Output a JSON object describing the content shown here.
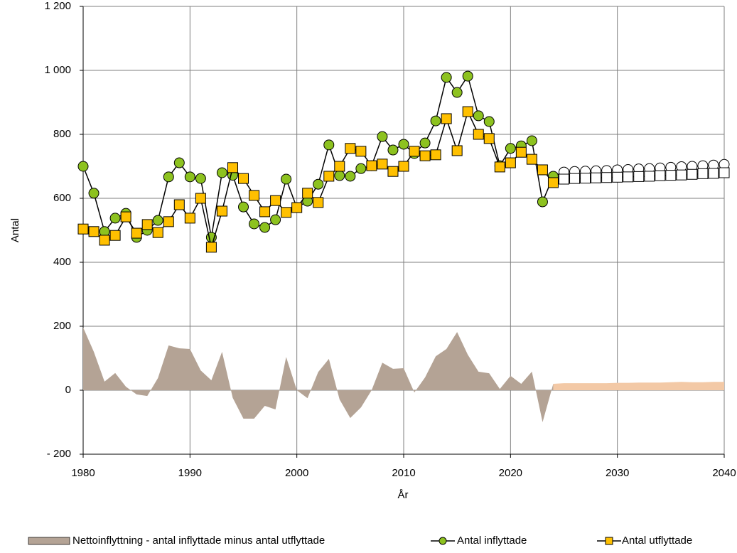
{
  "chart_data": {
    "type": "line",
    "xlabel": "År",
    "ylabel": "Antal",
    "xlim": [
      1980,
      2040
    ],
    "xticks": [
      1980,
      1990,
      2000,
      2010,
      2020,
      2030,
      2040
    ],
    "ylim": [
      -200,
      1200
    ],
    "yticks": [
      {
        "value": -200,
        "label": "- 200"
      },
      0,
      200,
      400,
      600,
      800,
      {
        "value": 1000,
        "label": "1 000"
      },
      {
        "value": 1200,
        "label": "1 200"
      }
    ],
    "grid": true,
    "legend": "bottom",
    "x": [
      1980,
      1981,
      1982,
      1983,
      1984,
      1985,
      1986,
      1987,
      1988,
      1989,
      1990,
      1991,
      1992,
      1993,
      1994,
      1995,
      1996,
      1997,
      1998,
      1999,
      2000,
      2001,
      2002,
      2003,
      2004,
      2005,
      2006,
      2007,
      2008,
      2009,
      2010,
      2011,
      2012,
      2013,
      2014,
      2015,
      2016,
      2017,
      2018,
      2019,
      2020,
      2021,
      2022,
      2023,
      2024,
      2025,
      2026,
      2027,
      2028,
      2029,
      2030,
      2031,
      2032,
      2033,
      2034,
      2035,
      2036,
      2037,
      2038,
      2039,
      2040
    ],
    "series": [
      {
        "name": "Nettoinflyttning - antal inflyttade minus antal utflyttade",
        "style": "area",
        "values": [
          196,
          120,
          27,
          54,
          11,
          -13,
          -18,
          38,
          140,
          131,
          129,
          62,
          31,
          120,
          -24,
          -89,
          -89,
          -49,
          -60,
          104,
          0,
          -25,
          57,
          98,
          -29,
          -87,
          -54,
          0,
          86,
          67,
          69,
          -7,
          40,
          106,
          129,
          182,
          111,
          58,
          53,
          4,
          45,
          20,
          58,
          -100,
          20,
          22,
          22,
          22,
          22,
          22,
          23,
          23,
          24,
          24,
          24,
          25,
          26,
          25,
          25,
          26,
          26
        ],
        "colors": [
          "#b4a395",
          "#b4a395",
          "#b4a395",
          "#b4a395",
          "#b4a395",
          "#b4a395",
          "#b4a395",
          "#b4a395",
          "#b4a395",
          "#b4a395",
          "#b4a395",
          "#b4a395",
          "#b4a395",
          "#b4a395",
          "#b4a395",
          "#b4a395",
          "#b4a395",
          "#b4a395",
          "#b4a395",
          "#b4a395",
          "#b4a395",
          "#b4a395",
          "#b4a395",
          "#b4a395",
          "#b4a395",
          "#b4a395",
          "#b4a395",
          "#b4a395",
          "#b4a395",
          "#b4a395",
          "#b4a395",
          "#b4a395",
          "#b4a395",
          "#b4a395",
          "#b4a395",
          "#b4a395",
          "#b4a395",
          "#b4a395",
          "#b4a395",
          "#b4a395",
          "#b4a395",
          "#b4a395",
          "#b4a395",
          "#b4a395",
          "#b4a395",
          "#f3c9a6",
          "#f3c9a6",
          "#f3c9a6",
          "#f3c9a6",
          "#f3c9a6",
          "#f3c9a6",
          "#f3c9a6",
          "#f3c9a6",
          "#f3c9a6",
          "#f3c9a6",
          "#f3c9a6",
          "#f3c9a6",
          "#f3c9a6",
          "#f3c9a6",
          "#f3c9a6",
          "#f3c9a6"
        ]
      },
      {
        "name": "Antal inflyttade",
        "style": "circle",
        "values": [
          700,
          616,
          496,
          538,
          553,
          478,
          500,
          531,
          667,
          711,
          667,
          662,
          478,
          680,
          672,
          573,
          520,
          509,
          533,
          660,
          571,
          591,
          644,
          767,
          671,
          669,
          693,
          702,
          793,
          751,
          769,
          740,
          773,
          842,
          978,
          931,
          982,
          858,
          840,
          702,
          756,
          764,
          780,
          589,
          669,
          682,
          684,
          685,
          686,
          687,
          689,
          690,
          692,
          693,
          695,
          697,
          699,
          700,
          702,
          704,
          706
        ],
        "colors": [
          "#8dc21f",
          "#8dc21f",
          "#8dc21f",
          "#8dc21f",
          "#8dc21f",
          "#8dc21f",
          "#8dc21f",
          "#8dc21f",
          "#8dc21f",
          "#8dc21f",
          "#8dc21f",
          "#8dc21f",
          "#8dc21f",
          "#8dc21f",
          "#8dc21f",
          "#8dc21f",
          "#8dc21f",
          "#8dc21f",
          "#8dc21f",
          "#8dc21f",
          "#8dc21f",
          "#8dc21f",
          "#8dc21f",
          "#8dc21f",
          "#8dc21f",
          "#8dc21f",
          "#8dc21f",
          "#8dc21f",
          "#8dc21f",
          "#8dc21f",
          "#8dc21f",
          "#8dc21f",
          "#8dc21f",
          "#8dc21f",
          "#8dc21f",
          "#8dc21f",
          "#8dc21f",
          "#8dc21f",
          "#8dc21f",
          "#8dc21f",
          "#8dc21f",
          "#8dc21f",
          "#8dc21f",
          "#8dc21f",
          "#8dc21f",
          "#ffffff",
          "#ffffff",
          "#ffffff",
          "#ffffff",
          "#ffffff",
          "#ffffff",
          "#ffffff",
          "#ffffff",
          "#ffffff",
          "#ffffff",
          "#ffffff",
          "#ffffff",
          "#ffffff",
          "#ffffff",
          "#ffffff",
          "#ffffff"
        ]
      },
      {
        "name": "Antal utflyttade",
        "style": "square",
        "values": [
          504,
          496,
          469,
          484,
          542,
          491,
          518,
          493,
          527,
          580,
          538,
          600,
          447,
          560,
          696,
          662,
          609,
          558,
          593,
          556,
          571,
          616,
          587,
          669,
          700,
          756,
          747,
          702,
          707,
          684,
          700,
          747,
          733,
          736,
          849,
          749,
          871,
          800,
          787,
          698,
          711,
          744,
          722,
          689,
          649,
          660,
          662,
          663,
          664,
          665,
          666,
          667,
          668,
          669,
          671,
          672,
          673,
          675,
          677,
          678,
          680
        ],
        "colors": [
          "#ffc000",
          "#ffc000",
          "#ffc000",
          "#ffc000",
          "#ffc000",
          "#ffc000",
          "#ffc000",
          "#ffc000",
          "#ffc000",
          "#ffc000",
          "#ffc000",
          "#ffc000",
          "#ffc000",
          "#ffc000",
          "#ffc000",
          "#ffc000",
          "#ffc000",
          "#ffc000",
          "#ffc000",
          "#ffc000",
          "#ffc000",
          "#ffc000",
          "#ffc000",
          "#ffc000",
          "#ffc000",
          "#ffc000",
          "#ffc000",
          "#ffc000",
          "#ffc000",
          "#ffc000",
          "#ffc000",
          "#ffc000",
          "#ffc000",
          "#ffc000",
          "#ffc000",
          "#ffc000",
          "#ffc000",
          "#ffc000",
          "#ffc000",
          "#ffc000",
          "#ffc000",
          "#ffc000",
          "#ffc000",
          "#ffc000",
          "#ffc000",
          "#ffffff",
          "#ffffff",
          "#ffffff",
          "#ffffff",
          "#ffffff",
          "#ffffff",
          "#ffffff",
          "#ffffff",
          "#ffffff",
          "#ffffff",
          "#ffffff",
          "#ffffff",
          "#ffffff",
          "#ffffff",
          "#ffffff",
          "#ffffff"
        ]
      }
    ]
  }
}
